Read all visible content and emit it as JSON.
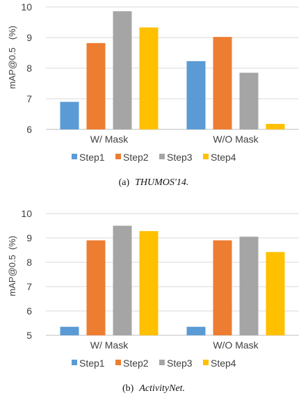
{
  "chart_data": [
    {
      "type": "bar",
      "caption_prefix": "(a)",
      "caption_title": "THUMOS'14.",
      "ylabel": "mAP@0.5",
      "yunit": "(%)",
      "ylim": [
        6,
        10
      ],
      "yticks": [
        "6",
        "7",
        "8",
        "9",
        "10"
      ],
      "grid": true,
      "legend_position": "bottom",
      "categories": [
        "W/ Mask",
        "W/O Mask"
      ],
      "series": [
        {
          "name": "Step1",
          "color": "#5B9BD5",
          "values": [
            6.9,
            8.23
          ]
        },
        {
          "name": "Step2",
          "color": "#ED7D31",
          "values": [
            8.82,
            9.02
          ]
        },
        {
          "name": "Step3",
          "color": "#A5A5A5",
          "values": [
            9.86,
            7.85
          ]
        },
        {
          "name": "Step4",
          "color": "#FFC000",
          "values": [
            9.33,
            6.18
          ]
        }
      ]
    },
    {
      "type": "bar",
      "caption_prefix": "(b)",
      "caption_title": "ActivityNet.",
      "ylabel": "mAP@0.5",
      "yunit": "(%)",
      "ylim": [
        5,
        10
      ],
      "yticks": [
        "5",
        "6",
        "7",
        "8",
        "9",
        "10"
      ],
      "grid": true,
      "legend_position": "bottom",
      "categories": [
        "W/ Mask",
        "W/O Mask"
      ],
      "series": [
        {
          "name": "Step1",
          "color": "#5B9BD5",
          "values": [
            5.35,
            5.35
          ]
        },
        {
          "name": "Step2",
          "color": "#ED7D31",
          "values": [
            8.9,
            8.9
          ]
        },
        {
          "name": "Step3",
          "color": "#A5A5A5",
          "values": [
            9.5,
            9.05
          ]
        },
        {
          "name": "Step4",
          "color": "#FFC000",
          "values": [
            9.28,
            8.42
          ]
        }
      ]
    }
  ]
}
